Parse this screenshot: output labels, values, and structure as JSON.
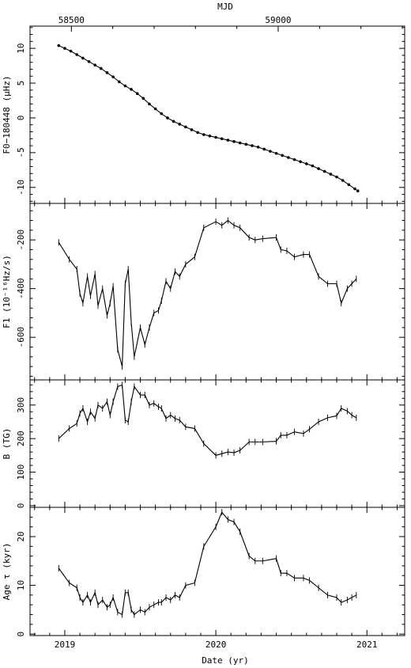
{
  "chart_data": {
    "type": "line",
    "top_axis": {
      "label": "MJD",
      "ticks": [
        58500,
        59000
      ]
    },
    "bottom_axis": {
      "label": "Date (yr)",
      "ticks": [
        2019,
        2020,
        2021
      ]
    },
    "xlim_yr": [
      2018.77,
      2021.25
    ],
    "panels": [
      {
        "id": "f0",
        "ylabel": "F0−180448 (μHz)",
        "ylim": [
          -12.3,
          13.2
        ],
        "yticks": [
          -10,
          -5,
          0,
          5,
          10
        ],
        "markers": true,
        "x": [
          2018.96,
          2019.0,
          2019.04,
          2019.08,
          2019.12,
          2019.16,
          2019.2,
          2019.24,
          2019.28,
          2019.32,
          2019.36,
          2019.4,
          2019.44,
          2019.48,
          2019.52,
          2019.56,
          2019.6,
          2019.64,
          2019.68,
          2019.72,
          2019.76,
          2019.8,
          2019.84,
          2019.88,
          2019.92,
          2019.96,
          2020.0,
          2020.04,
          2020.08,
          2020.12,
          2020.16,
          2020.2,
          2020.24,
          2020.28,
          2020.32,
          2020.36,
          2020.4,
          2020.44,
          2020.48,
          2020.52,
          2020.56,
          2020.6,
          2020.64,
          2020.68,
          2020.72,
          2020.76,
          2020.8,
          2020.84,
          2020.88,
          2020.92,
          2020.94
        ],
        "y": [
          10.4,
          10.0,
          9.6,
          9.1,
          8.6,
          8.1,
          7.6,
          7.1,
          6.5,
          5.9,
          5.2,
          4.6,
          4.1,
          3.5,
          2.8,
          2.0,
          1.3,
          0.6,
          0.0,
          -0.5,
          -0.9,
          -1.3,
          -1.7,
          -2.1,
          -2.4,
          -2.6,
          -2.8,
          -3.0,
          -3.2,
          -3.4,
          -3.6,
          -3.8,
          -4.0,
          -4.2,
          -4.5,
          -4.8,
          -5.1,
          -5.4,
          -5.7,
          -6.0,
          -6.3,
          -6.6,
          -6.9,
          -7.3,
          -7.7,
          -8.1,
          -8.5,
          -9.0,
          -9.6,
          -10.2,
          -10.5
        ]
      },
      {
        "id": "f1",
        "ylabel": "F1 (10⁻¹⁶Hz/s)",
        "ylim": [
          -775,
          -50
        ],
        "yticks": [
          -600,
          -400,
          -200
        ],
        "markers": false,
        "x": [
          2018.96,
          2019.03,
          2019.08,
          2019.1,
          2019.12,
          2019.15,
          2019.17,
          2019.2,
          2019.22,
          2019.25,
          2019.28,
          2019.3,
          2019.32,
          2019.35,
          2019.38,
          2019.4,
          2019.42,
          2019.44,
          2019.46,
          2019.5,
          2019.53,
          2019.56,
          2019.59,
          2019.62,
          2019.64,
          2019.67,
          2019.7,
          2019.73,
          2019.76,
          2019.8,
          2019.86,
          2019.92,
          2020.0,
          2020.04,
          2020.08,
          2020.12,
          2020.16,
          2020.22,
          2020.26,
          2020.31,
          2020.4,
          2020.43,
          2020.47,
          2020.52,
          2020.58,
          2020.62,
          2020.68,
          2020.74,
          2020.8,
          2020.83,
          2020.87,
          2020.9,
          2020.93
        ],
        "y": [
          -210,
          -280,
          -320,
          -420,
          -460,
          -350,
          -430,
          -340,
          -470,
          -400,
          -510,
          -460,
          -390,
          -650,
          -720,
          -380,
          -320,
          -540,
          -680,
          -560,
          -630,
          -560,
          -500,
          -490,
          -450,
          -370,
          -400,
          -330,
          -350,
          -300,
          -270,
          -150,
          -125,
          -140,
          -120,
          -140,
          -150,
          -190,
          -200,
          -195,
          -190,
          -240,
          -245,
          -270,
          -260,
          -260,
          -350,
          -380,
          -380,
          -460,
          -400,
          -380,
          -360
        ]
      },
      {
        "id": "b",
        "ylabel": "B (TG)",
        "ylim": [
          -5,
          375
        ],
        "yticks": [
          0,
          100,
          200,
          300
        ],
        "markers": false,
        "x": [
          2018.96,
          2019.03,
          2019.08,
          2019.1,
          2019.12,
          2019.15,
          2019.17,
          2019.2,
          2019.22,
          2019.25,
          2019.28,
          2019.3,
          2019.32,
          2019.35,
          2019.38,
          2019.4,
          2019.42,
          2019.44,
          2019.46,
          2019.5,
          2019.53,
          2019.56,
          2019.59,
          2019.62,
          2019.64,
          2019.67,
          2019.7,
          2019.73,
          2019.76,
          2019.8,
          2019.86,
          2019.92,
          2020.0,
          2020.04,
          2020.08,
          2020.12,
          2020.16,
          2020.22,
          2020.26,
          2020.31,
          2020.4,
          2020.43,
          2020.47,
          2020.52,
          2020.58,
          2020.62,
          2020.68,
          2020.74,
          2020.8,
          2020.83,
          2020.87,
          2020.9,
          2020.93
        ],
        "y": [
          200,
          230,
          245,
          275,
          290,
          250,
          280,
          260,
          300,
          290,
          310,
          270,
          310,
          355,
          360,
          255,
          250,
          310,
          355,
          330,
          330,
          300,
          305,
          295,
          290,
          260,
          270,
          260,
          255,
          235,
          230,
          185,
          150,
          155,
          160,
          158,
          165,
          190,
          190,
          190,
          192,
          210,
          210,
          220,
          215,
          228,
          250,
          262,
          268,
          290,
          282,
          270,
          262
        ]
      },
      {
        "id": "age",
        "ylabel": "Age τ (kyr)",
        "ylim": [
          -0.3,
          26.0
        ],
        "yticks": [
          0,
          10,
          20
        ],
        "markers": false,
        "x": [
          2018.96,
          2019.03,
          2019.08,
          2019.1,
          2019.12,
          2019.15,
          2019.17,
          2019.2,
          2019.22,
          2019.25,
          2019.28,
          2019.3,
          2019.32,
          2019.35,
          2019.38,
          2019.4,
          2019.42,
          2019.44,
          2019.46,
          2019.5,
          2019.53,
          2019.56,
          2019.59,
          2019.62,
          2019.64,
          2019.67,
          2019.7,
          2019.73,
          2019.76,
          2019.8,
          2019.86,
          2019.92,
          2020.0,
          2020.04,
          2020.08,
          2020.12,
          2020.16,
          2020.22,
          2020.26,
          2020.31,
          2020.4,
          2020.43,
          2020.47,
          2020.52,
          2020.58,
          2020.62,
          2020.68,
          2020.74,
          2020.8,
          2020.83,
          2020.87,
          2020.9,
          2020.93
        ],
        "y": [
          13.5,
          10.5,
          9.5,
          7.5,
          6.5,
          8.0,
          6.5,
          8.5,
          6.0,
          7.0,
          5.5,
          6.0,
          7.5,
          4.5,
          4.0,
          8.5,
          8.5,
          5.0,
          4.0,
          5.0,
          4.5,
          5.5,
          6.0,
          6.5,
          6.5,
          7.5,
          7.0,
          8.0,
          7.5,
          10.0,
          10.5,
          18.0,
          22.0,
          25.0,
          23.5,
          23.0,
          21.0,
          16.0,
          15.0,
          15.0,
          15.5,
          12.5,
          12.5,
          11.5,
          11.5,
          11.0,
          9.5,
          8.0,
          7.5,
          6.5,
          7.0,
          7.5,
          8.0
        ]
      }
    ]
  }
}
